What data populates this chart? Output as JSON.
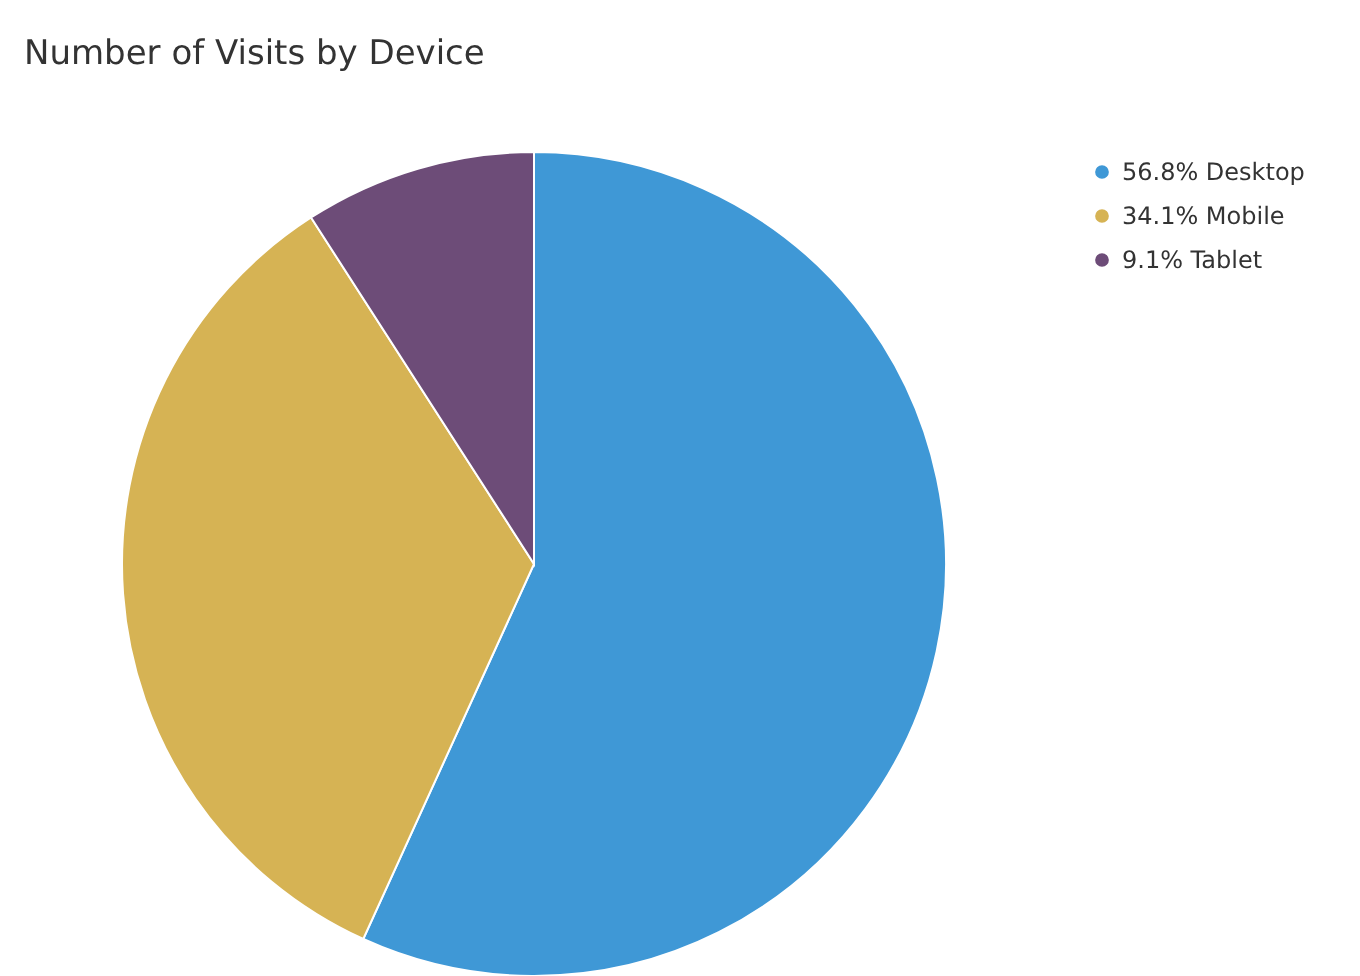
{
  "chart_data": {
    "type": "pie",
    "title": "Number of Visits by Device",
    "categories": [
      "56.8% Desktop",
      "34.1% Mobile",
      "9.1% Tablet"
    ],
    "values": [
      56.8,
      34.1,
      9.1
    ],
    "colors": [
      "#3f98d6",
      "#d6b354",
      "#6d4c78"
    ],
    "legend": "top right"
  }
}
